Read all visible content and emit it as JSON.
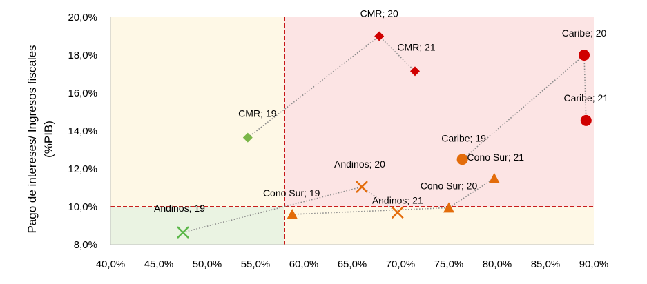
{
  "chart_data": {
    "type": "scatter",
    "title": "",
    "xlabel": "",
    "ylabel": "Pago de intereses/ Ingresos fiscales",
    "ylabel_line2": "(%PIB)",
    "xlim": [
      40,
      90
    ],
    "ylim": [
      8,
      20
    ],
    "x_ticks": [
      "40,0%",
      "45,0%",
      "50,0%",
      "55,0%",
      "60,0%",
      "65,0%",
      "70,0%",
      "75,0%",
      "80,0%",
      "85,0%",
      "90,0%"
    ],
    "y_ticks": [
      "8,0%",
      "10,0%",
      "12,0%",
      "14,0%",
      "16,0%",
      "18,0%",
      "20,0%"
    ],
    "grid": false,
    "threshold_x": 58,
    "threshold_y": 10,
    "quadrant_colors": {
      "top_left": "#FEF8E6",
      "top_right": "#FCE4E4",
      "bottom_left": "#EAF3E2",
      "bottom_right": "#FEF8E6"
    },
    "threshold_color": "#C00000",
    "path_color": "#8A8A8A",
    "series": [
      {
        "name": "CMR",
        "points": [
          {
            "x": 54.2,
            "y": 13.65,
            "label": "CMR; 19",
            "color": "#7AB648",
            "marker": "diamond"
          },
          {
            "x": 67.8,
            "y": 19.0,
            "label": "CMR; 20",
            "color": "#D00000",
            "marker": "diamond"
          },
          {
            "x": 71.5,
            "y": 17.15,
            "label": "CMR; 21",
            "color": "#D00000",
            "marker": "diamond"
          }
        ]
      },
      {
        "name": "Caribe",
        "points": [
          {
            "x": 76.4,
            "y": 12.5,
            "label": "Caribe; 19",
            "color": "#E36C0A",
            "marker": "circle"
          },
          {
            "x": 89.0,
            "y": 18.0,
            "label": "Caribe; 20",
            "color": "#D00000",
            "marker": "circle"
          },
          {
            "x": 89.2,
            "y": 14.55,
            "label": "Caribe; 21",
            "color": "#D00000",
            "marker": "circle"
          }
        ]
      },
      {
        "name": "Andinos",
        "points": [
          {
            "x": 47.5,
            "y": 8.65,
            "label": "Andinos; 19",
            "color": "#5CB84A",
            "marker": "x"
          },
          {
            "x": 66.0,
            "y": 11.05,
            "label": "Andinos; 20",
            "color": "#E36C0A",
            "marker": "x"
          },
          {
            "x": 69.7,
            "y": 9.7,
            "label": "Andinos; 21",
            "color": "#E36C0A",
            "marker": "x"
          }
        ]
      },
      {
        "name": "Cono Sur",
        "points": [
          {
            "x": 58.8,
            "y": 9.6,
            "label": "Cono Sur; 19",
            "color": "#E36C0A",
            "marker": "triangle"
          },
          {
            "x": 75.0,
            "y": 9.95,
            "label": "Cono Sur; 20",
            "color": "#E36C0A",
            "marker": "triangle"
          },
          {
            "x": 79.7,
            "y": 11.5,
            "label": "Cono Sur; 21",
            "color": "#E36C0A",
            "marker": "triangle"
          }
        ]
      }
    ]
  }
}
